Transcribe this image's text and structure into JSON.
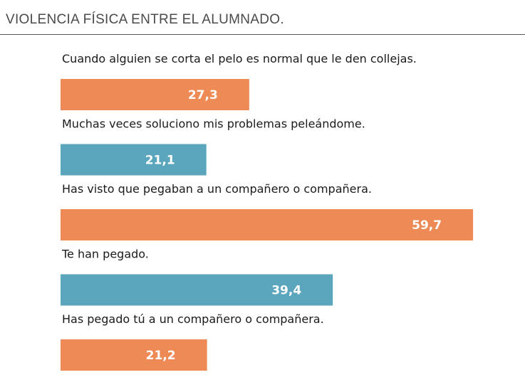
{
  "chart_data": {
    "type": "bar",
    "orientation": "horizontal",
    "title": "VIOLENCIA FÍSICA ENTRE EL ALUMNADO.",
    "categories": [
      "Cuando alguien se corta el pelo es normal que le den collejas.",
      "Muchas veces soluciono mis problemas peleándome.",
      "Has visto que pegaban a un compañero o compañera.",
      "Te han pegado.",
      "Has pegado tú a un compañero o compañera."
    ],
    "values": [
      27.3,
      21.1,
      59.7,
      39.4,
      21.2
    ],
    "value_labels": [
      "27,3",
      "21,1",
      "59,7",
      "39,4",
      "21,2"
    ],
    "bar_colors": [
      "#ee8a55",
      "#5ba6bc",
      "#ee8a55",
      "#5ba6bc",
      "#ee8a55"
    ],
    "xlim": [
      0,
      60
    ],
    "xlabel": "",
    "ylabel": "",
    "grid": false,
    "legend": "none"
  }
}
